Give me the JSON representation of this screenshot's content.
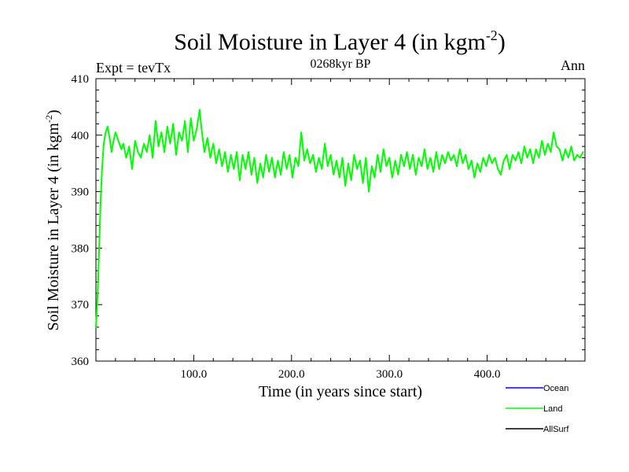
{
  "header": {
    "title_main": "Soil Moisture in Layer 4 (in kgm",
    "title_sup": "-2",
    "title_close": ")",
    "left": "Expt = tevTx",
    "center": "0268kyr BP",
    "right": "Ann"
  },
  "chart_data": {
    "type": "line",
    "xlabel": "Time (in years since start)",
    "ylabel_main": "Soil Moisture in Layer 4 (in kgm",
    "ylabel_sup": "-2",
    "ylabel_close": ")",
    "xlim": [
      0,
      500
    ],
    "ylim": [
      360,
      410
    ],
    "x_ticks": [
      100,
      200,
      300,
      400
    ],
    "x_tick_labels": [
      "100.0",
      "200.0",
      "300.0",
      "400.0"
    ],
    "y_ticks": [
      360,
      370,
      380,
      390,
      400,
      410
    ],
    "y_tick_labels": [
      "360",
      "370",
      "380",
      "390",
      "400",
      "410"
    ],
    "legend": {
      "placement": "bottom-right",
      "entries": [
        {
          "label": "Ocean",
          "color": "#0000ff"
        },
        {
          "label": "Land",
          "color": "#00ff00"
        },
        {
          "label": "AllSurf",
          "color": "#000000"
        }
      ]
    },
    "series": [
      {
        "name": "Land",
        "color": "#00ff00",
        "points": [
          [
            0,
            366
          ],
          [
            1,
            369
          ],
          [
            2,
            373
          ],
          [
            3,
            378
          ],
          [
            4,
            384
          ],
          [
            5,
            389
          ],
          [
            6,
            393
          ],
          [
            7,
            396
          ],
          [
            8,
            398.5
          ],
          [
            10,
            400.5
          ],
          [
            12,
            401.5
          ],
          [
            14,
            399.5
          ],
          [
            16,
            397
          ],
          [
            18,
            399
          ],
          [
            20,
            400.5
          ],
          [
            23,
            399
          ],
          [
            26,
            397.5
          ],
          [
            28,
            398.5
          ],
          [
            31,
            396
          ],
          [
            34,
            398
          ],
          [
            37,
            394
          ],
          [
            40,
            399
          ],
          [
            43,
            397
          ],
          [
            46,
            396
          ],
          [
            49,
            398.5
          ],
          [
            52,
            397
          ],
          [
            55,
            400
          ],
          [
            58,
            396
          ],
          [
            61,
            402.5
          ],
          [
            64,
            398
          ],
          [
            67,
            400.5
          ],
          [
            70,
            397
          ],
          [
            73,
            401.5
          ],
          [
            76,
            398.5
          ],
          [
            79,
            402
          ],
          [
            82,
            396.5
          ],
          [
            85,
            400.5
          ],
          [
            88,
            399
          ],
          [
            91,
            402.5
          ],
          [
            94,
            397
          ],
          [
            97,
            403
          ],
          [
            100,
            399
          ],
          [
            103,
            401
          ],
          [
            106,
            404.5
          ],
          [
            108,
            401
          ],
          [
            111,
            397
          ],
          [
            114,
            399.5
          ],
          [
            117,
            396
          ],
          [
            120,
            398.5
          ],
          [
            123,
            395
          ],
          [
            126,
            397.5
          ],
          [
            129,
            394.5
          ],
          [
            132,
            397
          ],
          [
            135,
            393.5
          ],
          [
            138,
            396.5
          ],
          [
            141,
            394
          ],
          [
            144,
            397
          ],
          [
            147,
            392
          ],
          [
            150,
            396.5
          ],
          [
            153,
            394
          ],
          [
            156,
            397
          ],
          [
            159,
            393
          ],
          [
            162,
            396
          ],
          [
            165,
            391.5
          ],
          [
            168,
            395
          ],
          [
            171,
            392.5
          ],
          [
            174,
            396.5
          ],
          [
            177,
            393.5
          ],
          [
            180,
            396
          ],
          [
            183,
            392.5
          ],
          [
            186,
            395.5
          ],
          [
            189,
            393
          ],
          [
            192,
            397
          ],
          [
            195,
            394
          ],
          [
            198,
            396.5
          ],
          [
            201,
            392.5
          ],
          [
            204,
            396
          ],
          [
            207,
            394.5
          ],
          [
            210,
            400.5
          ],
          [
            213,
            395.5
          ],
          [
            216,
            397.5
          ],
          [
            219,
            395
          ],
          [
            222,
            396.5
          ],
          [
            225,
            393.5
          ],
          [
            228,
            396
          ],
          [
            231,
            394
          ],
          [
            234,
            398.5
          ],
          [
            237,
            394.5
          ],
          [
            240,
            396.5
          ],
          [
            243,
            393
          ],
          [
            246,
            395.5
          ],
          [
            249,
            392.5
          ],
          [
            252,
            396
          ],
          [
            255,
            391
          ],
          [
            258,
            395
          ],
          [
            261,
            392
          ],
          [
            264,
            396.5
          ],
          [
            267,
            394
          ],
          [
            270,
            395.5
          ],
          [
            273,
            391.5
          ],
          [
            276,
            396
          ],
          [
            279,
            390
          ],
          [
            282,
            394.5
          ],
          [
            285,
            392.5
          ],
          [
            288,
            396.5
          ],
          [
            291,
            393.5
          ],
          [
            294,
            397.5
          ],
          [
            297,
            394.5
          ],
          [
            300,
            396
          ],
          [
            303,
            392.5
          ],
          [
            306,
            395.5
          ],
          [
            309,
            393
          ],
          [
            312,
            396.5
          ],
          [
            315,
            394.5
          ],
          [
            318,
            397
          ],
          [
            321,
            394
          ],
          [
            324,
            396.5
          ],
          [
            327,
            393
          ],
          [
            330,
            396
          ],
          [
            333,
            394.5
          ],
          [
            336,
            397.5
          ],
          [
            339,
            394
          ],
          [
            342,
            396
          ],
          [
            345,
            393.5
          ],
          [
            348,
            397
          ],
          [
            351,
            394
          ],
          [
            354,
            396.5
          ],
          [
            357,
            395
          ],
          [
            360,
            397
          ],
          [
            363,
            395.5
          ],
          [
            366,
            396.5
          ],
          [
            369,
            394.5
          ],
          [
            372,
            397.5
          ],
          [
            375,
            395
          ],
          [
            378,
            396.5
          ],
          [
            381,
            394
          ],
          [
            384,
            395.5
          ],
          [
            387,
            392.5
          ],
          [
            390,
            395
          ],
          [
            393,
            393.5
          ],
          [
            396,
            396
          ],
          [
            399,
            394.5
          ],
          [
            402,
            396.5
          ],
          [
            405,
            395
          ],
          [
            408,
            396
          ],
          [
            411,
            394
          ],
          [
            414,
            393
          ],
          [
            417,
            395.5
          ],
          [
            420,
            396.5
          ],
          [
            423,
            394
          ],
          [
            426,
            396.5
          ],
          [
            429,
            395.5
          ],
          [
            432,
            397
          ],
          [
            435,
            395
          ],
          [
            438,
            398
          ],
          [
            441,
            396
          ],
          [
            444,
            397.5
          ],
          [
            447,
            395
          ],
          [
            450,
            397.5
          ],
          [
            453,
            396
          ],
          [
            456,
            399
          ],
          [
            459,
            396.5
          ],
          [
            462,
            398.5
          ],
          [
            465,
            397
          ],
          [
            468,
            400.5
          ],
          [
            471,
            398
          ],
          [
            474,
            397.5
          ],
          [
            477,
            395.5
          ],
          [
            480,
            397.5
          ],
          [
            483,
            396
          ],
          [
            486,
            398
          ],
          [
            489,
            395.5
          ],
          [
            492,
            396.5
          ],
          [
            495,
            396
          ],
          [
            498,
            397
          ]
        ]
      }
    ]
  }
}
